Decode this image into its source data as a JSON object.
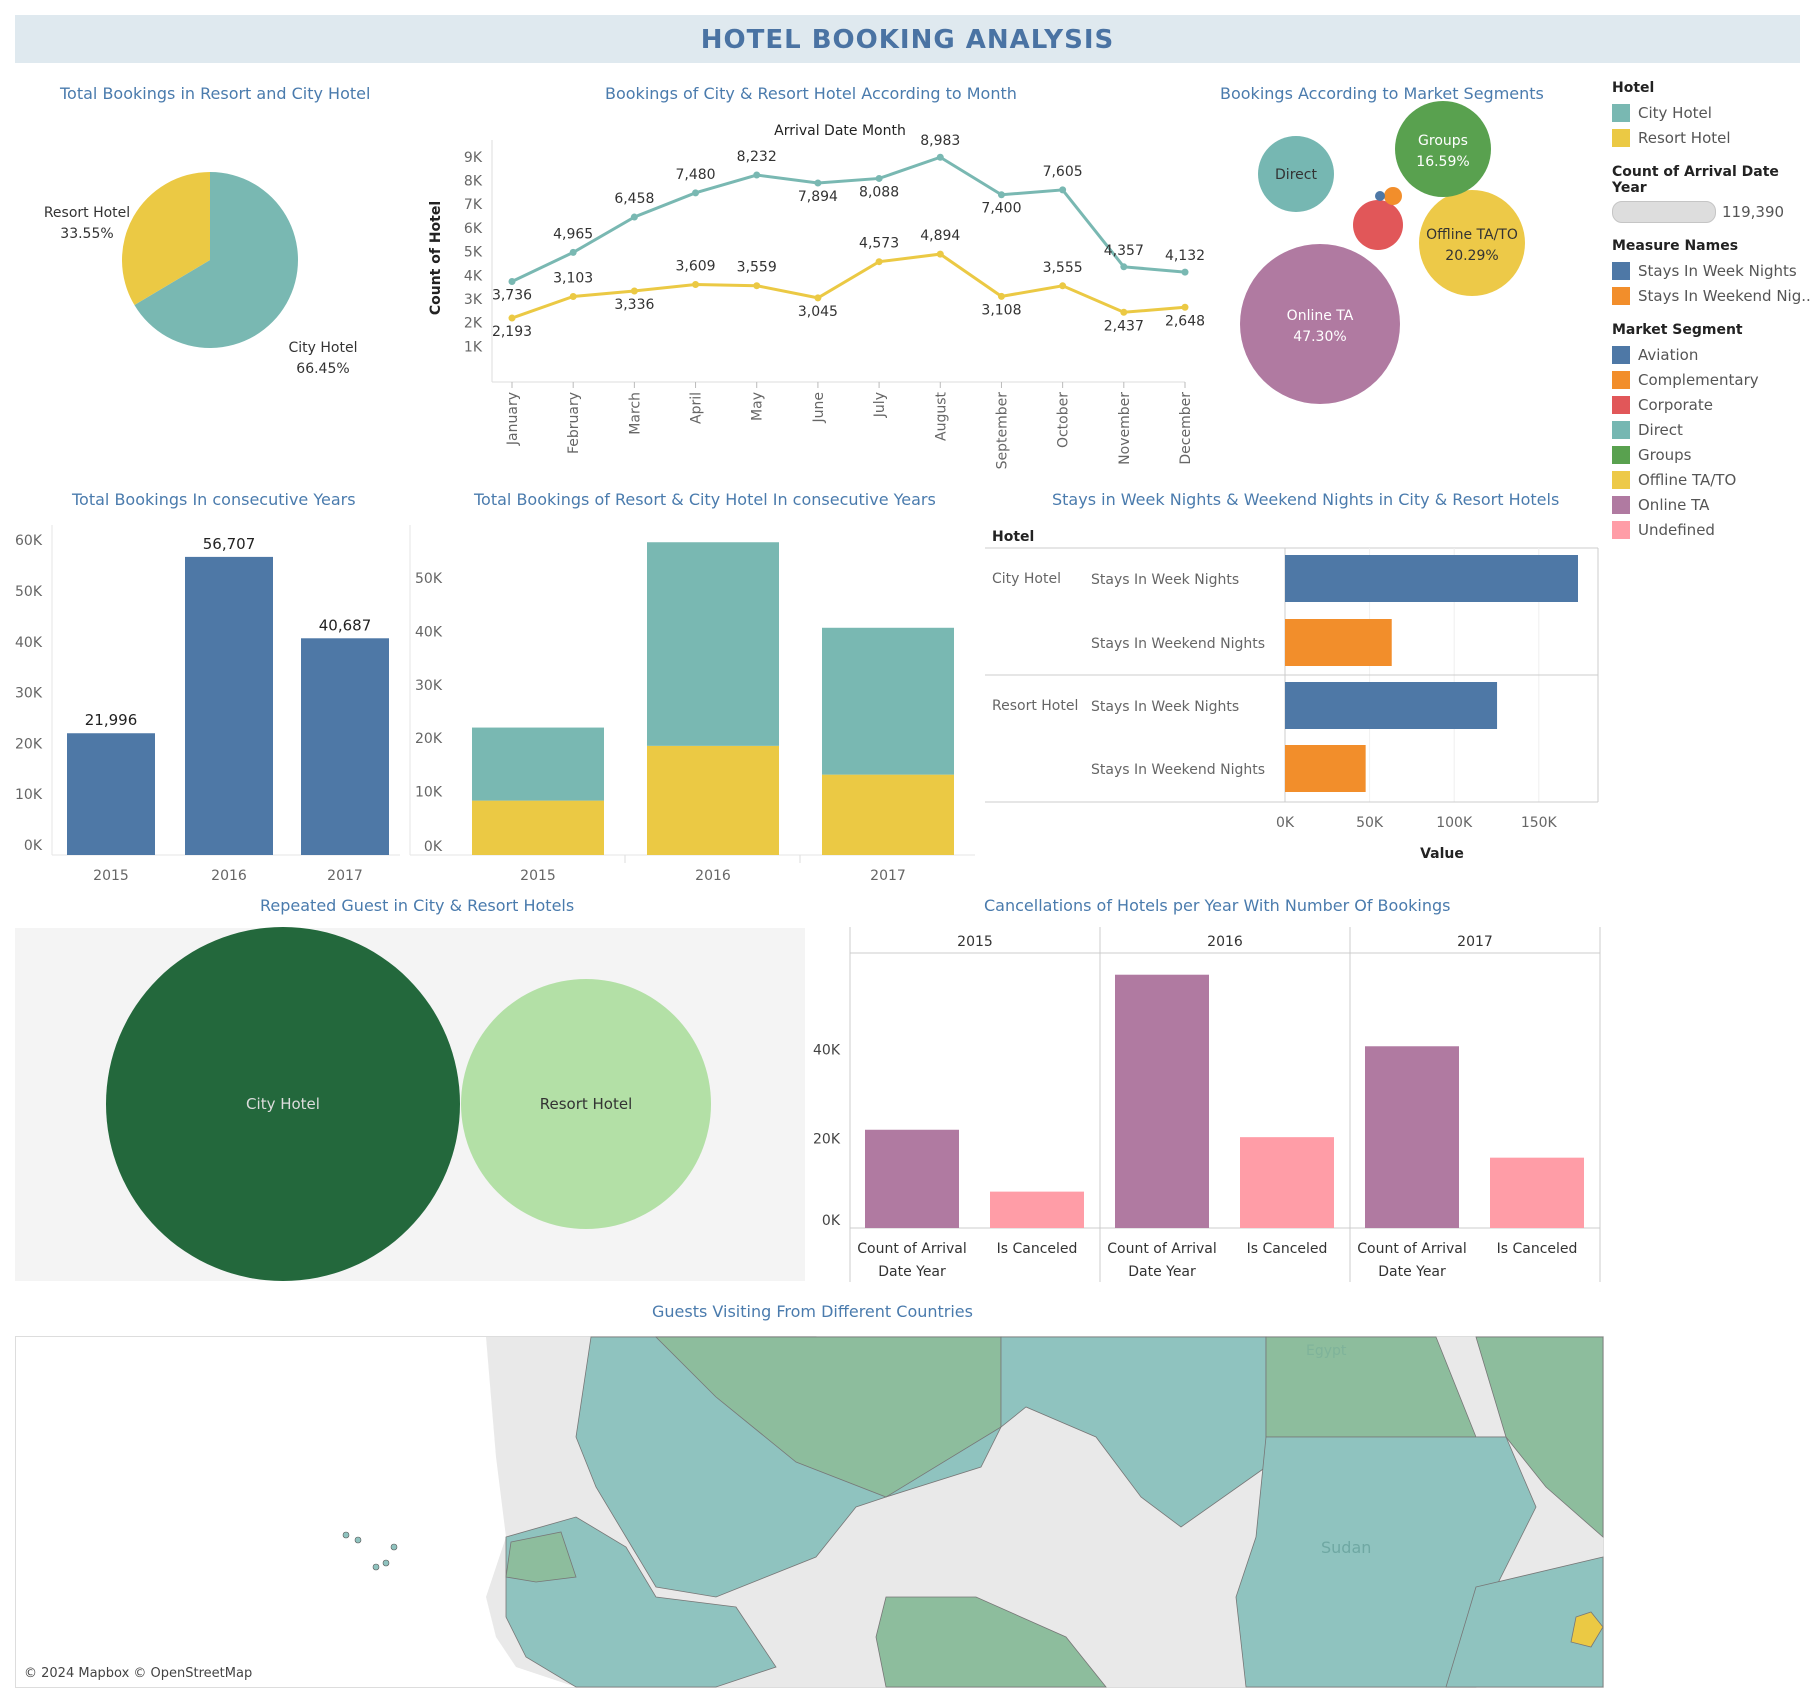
{
  "header": {
    "title": "HOTEL BOOKING ANALYSIS"
  },
  "panels": {
    "pie_title": "Total Bookings in Resort and City Hotel",
    "line_title": "Bookings of City & Resort Hotel According to Month",
    "bubble_title": "Bookings According to Market Segments",
    "years_title": "Total Bookings In consecutive Years",
    "stacked_title": "Total Bookings of Resort & City Hotel In consecutive Years",
    "stays_title": "Stays in Week Nights & Weekend Nights in City & Resort Hotels",
    "repeat_title": "Repeated Guest in City & Resort Hotels",
    "cancel_title": "Cancellations of Hotels per Year With Number Of Bookings",
    "map_title": "Guests Visiting From Different Countries"
  },
  "legend": {
    "hotel_title": "Hotel",
    "hotel_items": [
      {
        "label": "City Hotel",
        "color": "#79b8b2"
      },
      {
        "label": "Resort Hotel",
        "color": "#ebc944"
      }
    ],
    "count_title": "Count of Arrival Date Year",
    "count_value": "119,390",
    "measure_title": "Measure Names",
    "measure_items": [
      {
        "label": "Stays In Week Nights",
        "color": "#4e78a6"
      },
      {
        "label": "Stays In Weekend Nig..",
        "color": "#f28e2b"
      }
    ],
    "segment_title": "Market Segment",
    "segment_items": [
      {
        "label": "Aviation",
        "color": "#4e78a6"
      },
      {
        "label": "Complementary",
        "color": "#f28e2b"
      },
      {
        "label": "Corporate",
        "color": "#e15759"
      },
      {
        "label": "Direct",
        "color": "#76b7b2"
      },
      {
        "label": "Groups",
        "color": "#59a14f"
      },
      {
        "label": "Offline TA/TO",
        "color": "#edc948"
      },
      {
        "label": "Online TA",
        "color": "#b07aa1"
      },
      {
        "label": "Undefined",
        "color": "#ff9da7"
      }
    ]
  },
  "map": {
    "credit": "© 2024 Mapbox © OpenStreetMap",
    "label_sudan": "Sudan",
    "label_egypt": "Egypt"
  },
  "chart_data": [
    {
      "id": "pie",
      "type": "pie",
      "slices": [
        {
          "label": "City Hotel",
          "pct_label": "66.45%",
          "value": 66.45,
          "color": "#79b8b2"
        },
        {
          "label": "Resort Hotel",
          "pct_label": "33.55%",
          "value": 33.55,
          "color": "#ebc944"
        }
      ]
    },
    {
      "id": "monthly",
      "type": "line",
      "xlabel": "Arrival Date Month",
      "ylabel": "Count of Hotel",
      "ylim": [
        0,
        9500
      ],
      "yticks": [
        "1K",
        "2K",
        "3K",
        "4K",
        "5K",
        "6K",
        "7K",
        "8K",
        "9K"
      ],
      "categories": [
        "January",
        "February",
        "March",
        "April",
        "May",
        "June",
        "July",
        "August",
        "September",
        "October",
        "November",
        "December"
      ],
      "series": [
        {
          "name": "City Hotel",
          "color": "#79b8b2",
          "values": [
            3736,
            4965,
            6458,
            7480,
            8232,
            7894,
            8088,
            8983,
            7400,
            7605,
            4357,
            4132
          ],
          "labels": [
            "3,736",
            "4,965",
            "6,458",
            "7,480",
            "8,232",
            "7,894",
            "8,088",
            "8,983",
            "7,400",
            "7,605",
            "4,357",
            "4,132"
          ]
        },
        {
          "name": "Resort Hotel",
          "color": "#ebc944",
          "values": [
            2193,
            3103,
            3336,
            3609,
            3559,
            3045,
            4573,
            4894,
            3108,
            3555,
            2437,
            2648
          ],
          "labels": [
            "2,193",
            "3,103",
            "3,336",
            "3,609",
            "3,559",
            "3,045",
            "4,573",
            "4,894",
            "3,108",
            "3,555",
            "2,437",
            "2,648"
          ]
        }
      ]
    },
    {
      "id": "segments",
      "type": "bubble",
      "items": [
        {
          "label": "Online TA",
          "pct": "47.30%",
          "value": 47.3,
          "color": "#b07aa1"
        },
        {
          "label": "Offline TA/TO",
          "pct": "20.29%",
          "value": 20.29,
          "color": "#edc948"
        },
        {
          "label": "Groups",
          "pct": "16.59%",
          "value": 16.59,
          "color": "#59a14f"
        },
        {
          "label": "Direct",
          "pct": "",
          "value": 10.56,
          "color": "#76b7b2"
        },
        {
          "label": "Corporate",
          "pct": "",
          "value": 4.43,
          "color": "#e15759"
        },
        {
          "label": "Complementary",
          "pct": "",
          "value": 0.62,
          "color": "#f28e2b"
        },
        {
          "label": "Aviation",
          "pct": "",
          "value": 0.2,
          "color": "#4e78a6"
        }
      ]
    },
    {
      "id": "years",
      "type": "bar",
      "categories": [
        "2015",
        "2016",
        "2017"
      ],
      "values": [
        21996,
        56707,
        40687
      ],
      "labels": [
        "21,996",
        "56,707",
        "40,687"
      ],
      "ylim": [
        0,
        62000
      ],
      "yticks": [
        "0K",
        "10K",
        "20K",
        "30K",
        "40K",
        "50K",
        "60K"
      ],
      "color": "#4e78a6"
    },
    {
      "id": "stacked",
      "type": "bar",
      "categories": [
        "2015",
        "2016",
        "2017"
      ],
      "series": [
        {
          "name": "Resort Hotel",
          "color": "#ebc944",
          "values": [
            8314,
            18567,
            13179
          ]
        },
        {
          "name": "City Hotel",
          "color": "#79b8b2",
          "values": [
            13682,
            38140,
            27508
          ]
        }
      ],
      "ylim": [
        0,
        59000
      ],
      "yticks": [
        "0K",
        "10K",
        "20K",
        "30K",
        "40K",
        "50K"
      ]
    },
    {
      "id": "stays",
      "type": "bar",
      "orientation": "horizontal",
      "dim_header": "Hotel",
      "xlabel": "Value",
      "xlim": [
        0,
        185000
      ],
      "xticks": [
        "0K",
        "50K",
        "100K",
        "150K"
      ],
      "groups": [
        {
          "hotel": "City Hotel",
          "rows": [
            {
              "label": "Stays In Week Nights",
              "value": 173174,
              "color": "#4e78a6"
            },
            {
              "label": "Stays In Weekend Nights",
              "value": 63082,
              "color": "#f28e2b"
            }
          ]
        },
        {
          "hotel": "Resort Hotel",
          "rows": [
            {
              "label": "Stays In Week Nights",
              "value": 125337,
              "color": "#4e78a6"
            },
            {
              "label": "Stays In Weekend Nights",
              "value": 47664,
              "color": "#f28e2b"
            }
          ]
        }
      ]
    },
    {
      "id": "repeated",
      "type": "bubble",
      "items": [
        {
          "label": "City Hotel",
          "value": 2032,
          "color": "#23683c"
        },
        {
          "label": "Resort Hotel",
          "value": 1778,
          "color": "#b3e0a6"
        }
      ]
    },
    {
      "id": "cancel",
      "type": "bar",
      "ylim": [
        0,
        60000
      ],
      "yticks": [
        "0K",
        "20K",
        "40K"
      ],
      "panels": [
        {
          "year": "2015",
          "bars": [
            {
              "label": "Count of Arrival Date Year",
              "value": 21996,
              "color": "#b07aa1"
            },
            {
              "label": "Is Canceled",
              "value": 8142,
              "color": "#ff9da7"
            }
          ]
        },
        {
          "year": "2016",
          "bars": [
            {
              "label": "Count of Arrival Date Year",
              "value": 56707,
              "color": "#b07aa1"
            },
            {
              "label": "Is Canceled",
              "value": 20337,
              "color": "#ff9da7"
            }
          ]
        },
        {
          "year": "2017",
          "bars": [
            {
              "label": "Count of Arrival Date Year",
              "value": 40687,
              "color": "#b07aa1"
            },
            {
              "label": "Is Canceled",
              "value": 15745,
              "color": "#ff9da7"
            }
          ]
        }
      ]
    }
  ]
}
